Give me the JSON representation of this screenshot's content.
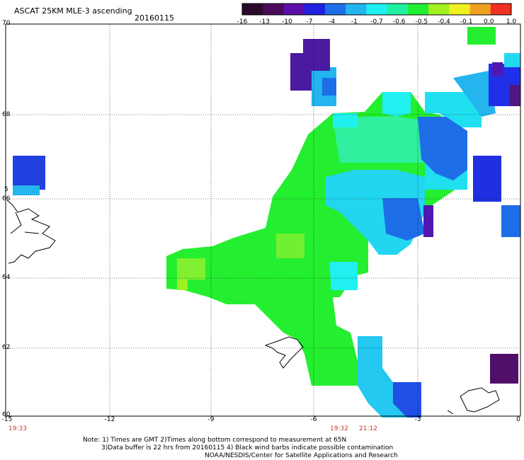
{
  "title": "ASCAT 25KM MLE-3 ascending",
  "date": "20160115",
  "colorbar": {
    "labels": [
      "-16",
      "-13",
      "-10",
      "-7",
      "-4",
      "-1",
      "-0.7",
      "-0.6",
      "-0.5",
      "-0.4",
      "-0.1",
      "0.0",
      "1.0"
    ],
    "colors": [
      "#2a0a2a",
      "#4a0a5a",
      "#5a10a8",
      "#2020e0",
      "#1e6ee8",
      "#24b4ee",
      "#20f0f0",
      "#20f0a0",
      "#20ee30",
      "#a0f020",
      "#f0f020",
      "#f0a020",
      "#f03020"
    ]
  },
  "axes": {
    "lon_labels": [
      "-15",
      "-12",
      "-9",
      "-6",
      "-3",
      "0"
    ],
    "lat_labels": [
      "70",
      "68",
      "66",
      "64",
      "62",
      "60"
    ],
    "lat_66_overlap_label": "5"
  },
  "times": {
    "left": "19:33",
    "mid1": "19:32",
    "mid2": "21:12"
  },
  "notes": {
    "line1": "Note: 1) Times are GMT 2)Times along bottom correspond to measurement at 65N",
    "line2": "3)Data buffer is 22 hrs from 20160115 4) Black wind barbs indicate possible contamination",
    "line3": "NOAA/NESDIS/Center for Satellite Applications and Research"
  }
}
